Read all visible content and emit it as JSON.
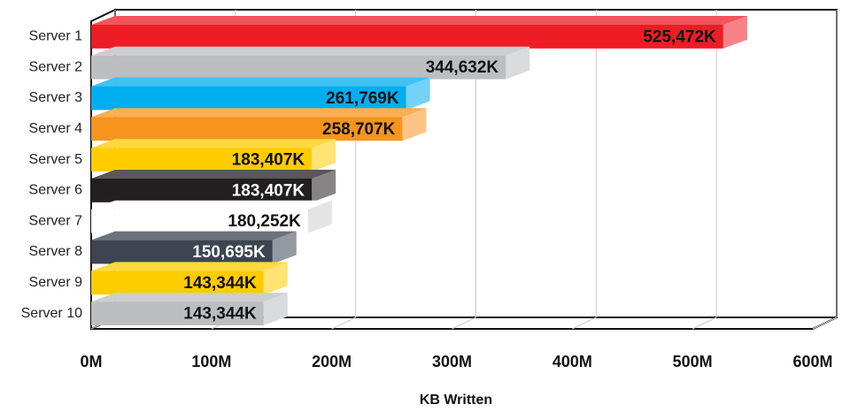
{
  "chart_data": {
    "type": "bar3d_horizontal",
    "x_label": "KB Written",
    "categories": [
      "Server 1",
      "Server 2",
      "Server 3",
      "Server 4",
      "Server 5",
      "Server 6",
      "Server 7",
      "Server 8",
      "Server 9",
      "Server 10"
    ],
    "values": [
      525472000,
      344632000,
      261769000,
      258707000,
      183407000,
      183407000,
      180252000,
      150695000,
      143344000,
      143344000
    ],
    "value_labels": [
      "525,472K",
      "344,632K",
      "261,769K",
      "258,707K",
      "183,407K",
      "183,407K",
      "180,252K",
      "150,695K",
      "143,344K",
      "143,344K"
    ],
    "colors": [
      "#ee1c25",
      "#bcbec0",
      "#00aeef",
      "#f7941d",
      "#ffcc00",
      "#231f20",
      "#ffffff",
      "#3c4550",
      "#ffcc00",
      "#bcbec0"
    ],
    "xlim": [
      0,
      600000000
    ],
    "xticks": [
      {
        "value": 0,
        "label": "0M"
      },
      {
        "value": 100000000,
        "label": "100M"
      },
      {
        "value": 200000000,
        "label": "200M"
      },
      {
        "value": 300000000,
        "label": "300M"
      },
      {
        "value": 400000000,
        "label": "400M"
      },
      {
        "value": 500000000,
        "label": "500M"
      },
      {
        "value": 600000000,
        "label": "600M"
      }
    ],
    "grid": true
  }
}
